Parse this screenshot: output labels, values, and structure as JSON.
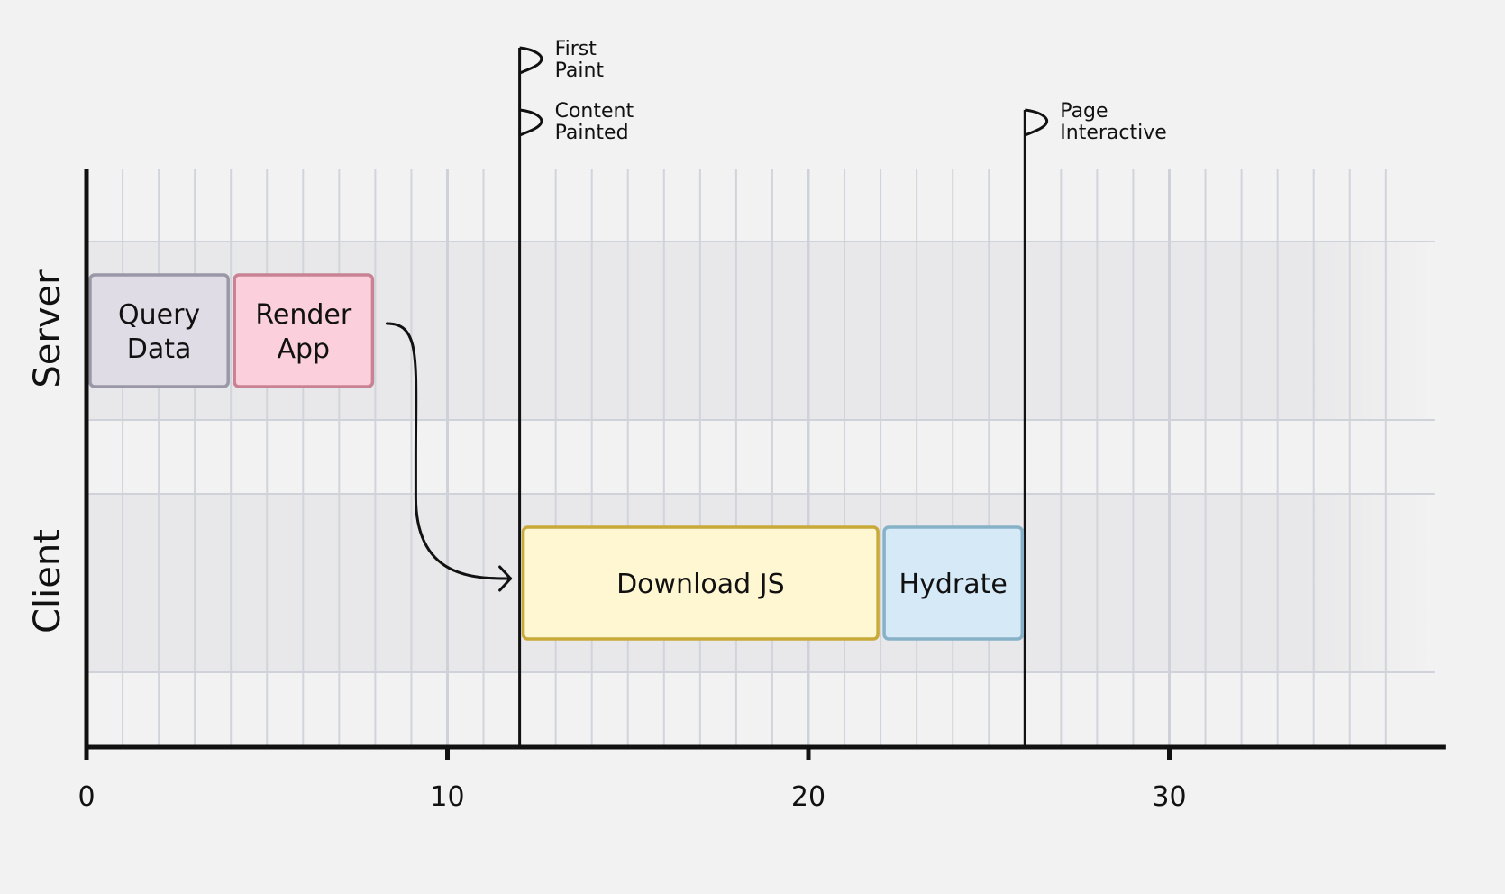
{
  "chart_data": {
    "type": "gantt",
    "x_axis": {
      "min": 0,
      "max": 37,
      "ticks": [
        0,
        10,
        20,
        30
      ],
      "tick_labels": [
        "0",
        "10",
        "20",
        "30"
      ],
      "minor_step": 1,
      "major_step": 10
    },
    "rows": [
      {
        "id": "server",
        "label": "Server"
      },
      {
        "id": "client",
        "label": "Client"
      }
    ],
    "tasks": [
      {
        "id": "query-data",
        "row": "server",
        "lines": [
          "Query",
          "Data"
        ],
        "start": 0,
        "end": 4,
        "fill": "#e0dce6",
        "stroke": "#9a98a6"
      },
      {
        "id": "render-app",
        "row": "server",
        "lines": [
          "Render",
          "App"
        ],
        "start": 4,
        "end": 8,
        "fill": "#fbd0dc",
        "stroke": "#c98294"
      },
      {
        "id": "download-js",
        "row": "client",
        "lines": [
          "Download JS"
        ],
        "start": 12,
        "end": 22,
        "fill": "#fef7d2",
        "stroke": "#c9a93a"
      },
      {
        "id": "hydrate",
        "row": "client",
        "lines": [
          "Hydrate"
        ],
        "start": 22,
        "end": 26,
        "fill": "#d5eaf6",
        "stroke": "#86b1c6"
      }
    ],
    "milestones": [
      {
        "id": "first-paint",
        "x": 12,
        "lines": [
          "First",
          "Paint"
        ],
        "level": 0
      },
      {
        "id": "content-painted",
        "x": 12,
        "lines": [
          "Content",
          "Painted"
        ],
        "level": 1
      },
      {
        "id": "page-interactive",
        "x": 26,
        "lines": [
          "Page",
          "Interactive"
        ],
        "level": 1
      }
    ],
    "dependency": {
      "from": "render-app",
      "to": "download-js"
    }
  }
}
